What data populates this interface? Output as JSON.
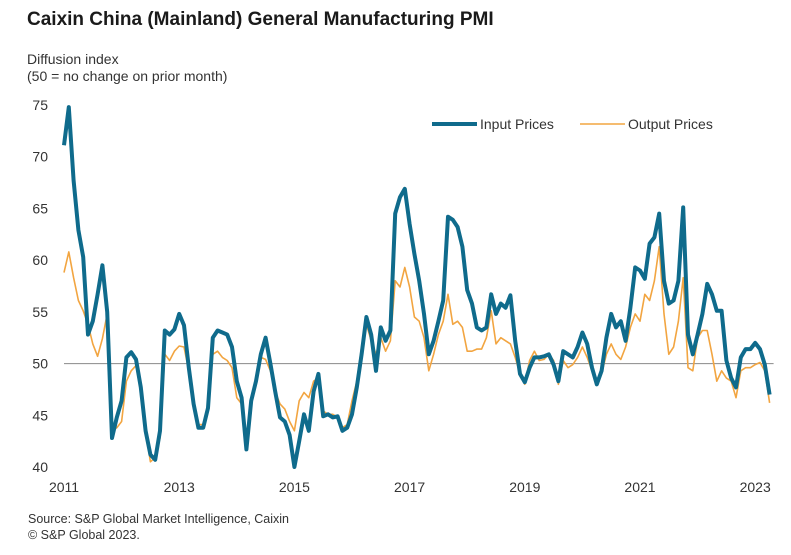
{
  "chart_data": {
    "type": "line",
    "title": "Caixin China (Mainland) General Manufacturing PMI",
    "subtitle": [
      "Diffusion index",
      "(50 = no change on prior month)"
    ],
    "source": [
      "Source: S&P Global Market Intelligence, Caixin",
      "© S&P Global 2023."
    ],
    "x_start": "2011-01",
    "x_end": "2023-04",
    "x_frequency": "monthly",
    "x_ticks": [
      "2011",
      "2013",
      "2015",
      "2017",
      "2019",
      "2021",
      "2023"
    ],
    "y_ticks": [
      40,
      45,
      50,
      55,
      60,
      65,
      70,
      75
    ],
    "ylim": [
      40,
      75
    ],
    "reference_line": 50,
    "grid": false,
    "legend_placement": "top-right",
    "series": [
      {
        "name": "Input Prices",
        "color": "#0f6b8c",
        "values": [
          71.1,
          74.8,
          67.7,
          62.9,
          60.3,
          52.8,
          54.1,
          56.7,
          59.5,
          55,
          42.8,
          44.8,
          46.4,
          50.6,
          51.1,
          50.4,
          47.7,
          43.5,
          41.2,
          40.7,
          43.5,
          53.2,
          52.8,
          53.3,
          54.8,
          53.7,
          49.6,
          46.1,
          43.8,
          43.8,
          45.7,
          52.5,
          53.2,
          53,
          52.8,
          51.6,
          48.3,
          46.7,
          41.7,
          46.4,
          48.3,
          50.9,
          52.5,
          50,
          47.3,
          44.8,
          44.4,
          43.1,
          40,
          42.5,
          45.1,
          43.5,
          47.3,
          49,
          44.9,
          45.1,
          44.8,
          44.9,
          43.5,
          43.8,
          45.1,
          47.7,
          50.9,
          54.5,
          52.8,
          49.3,
          53.5,
          52.2,
          53.2,
          64.5,
          66.1,
          66.9,
          63.5,
          60.6,
          58,
          54.8,
          50.9,
          52.2,
          54.1,
          56.1,
          64.2,
          63.9,
          63.2,
          61.3,
          57.1,
          55.8,
          53.5,
          53.2,
          53.5,
          56.7,
          54.8,
          55.8,
          55.4,
          56.6,
          52.2,
          49,
          48.2,
          49.6,
          50.6,
          50.6,
          50.7,
          50.9,
          49.9,
          48.3,
          51.2,
          50.9,
          50.6,
          51.6,
          53,
          51.9,
          49.6,
          48,
          49.3,
          52.5,
          54.8,
          53.5,
          54.1,
          52.2,
          55.4,
          59.3,
          59,
          58.2,
          61.6,
          62.2,
          64.5,
          58,
          55.8,
          56.1,
          58,
          65.1,
          52.8,
          50.9,
          52.8,
          54.8,
          57.7,
          56.7,
          55.1,
          55.1,
          50.3,
          48.6,
          47.7,
          50.6,
          51.4,
          51.4,
          52,
          51.4,
          49.9,
          47
        ]
      },
      {
        "name": "Output Prices",
        "color": "#f2a541",
        "values": [
          58.8,
          60.8,
          58.3,
          56.1,
          55.1,
          53.8,
          51.9,
          50.7,
          52.4,
          54.8,
          43.5,
          43.8,
          44.4,
          48.3,
          49.3,
          49.8,
          47.3,
          43.5,
          40.5,
          40.9,
          42.8,
          50.9,
          50.3,
          51.2,
          51.7,
          51.6,
          49.3,
          45.7,
          44.1,
          44.1,
          45.4,
          50.9,
          51.2,
          50.6,
          50.3,
          49.6,
          46.7,
          46.1,
          42.8,
          46.7,
          48.3,
          50.6,
          50.4,
          49.3,
          47.3,
          46.1,
          45.6,
          44.4,
          43.5,
          46.4,
          47.2,
          46.7,
          48.3,
          48.6,
          45.4,
          45.1,
          45.1,
          44.8,
          43.8,
          44.1,
          46.4,
          48.3,
          51.6,
          53.8,
          52.2,
          50.9,
          52.5,
          51.2,
          52.2,
          58,
          57.4,
          59.3,
          57.4,
          54.5,
          54.1,
          52.5,
          49.3,
          50.9,
          52.8,
          54.1,
          56.7,
          53.8,
          54.1,
          53.5,
          51.2,
          51.2,
          51.4,
          51.4,
          52.5,
          55.1,
          51.9,
          52.5,
          52.2,
          51.9,
          50.6,
          49,
          48,
          50.3,
          51.2,
          50.3,
          50.4,
          50.9,
          50.3,
          48,
          50.3,
          49.6,
          49.9,
          50.6,
          51.6,
          50.6,
          49.3,
          48.2,
          49,
          50.9,
          51.9,
          50.9,
          50.4,
          51.6,
          53.5,
          54.8,
          54.1,
          56.7,
          56.1,
          58,
          61.3,
          54.8,
          50.9,
          51.6,
          54.1,
          58.3,
          49.6,
          49.3,
          52.5,
          53.2,
          53.2,
          50.9,
          48.3,
          49.3,
          48.6,
          48.3,
          46.7,
          49.3,
          49.6,
          49.6,
          49.9,
          50.1,
          49.3,
          46.2
        ]
      }
    ]
  }
}
